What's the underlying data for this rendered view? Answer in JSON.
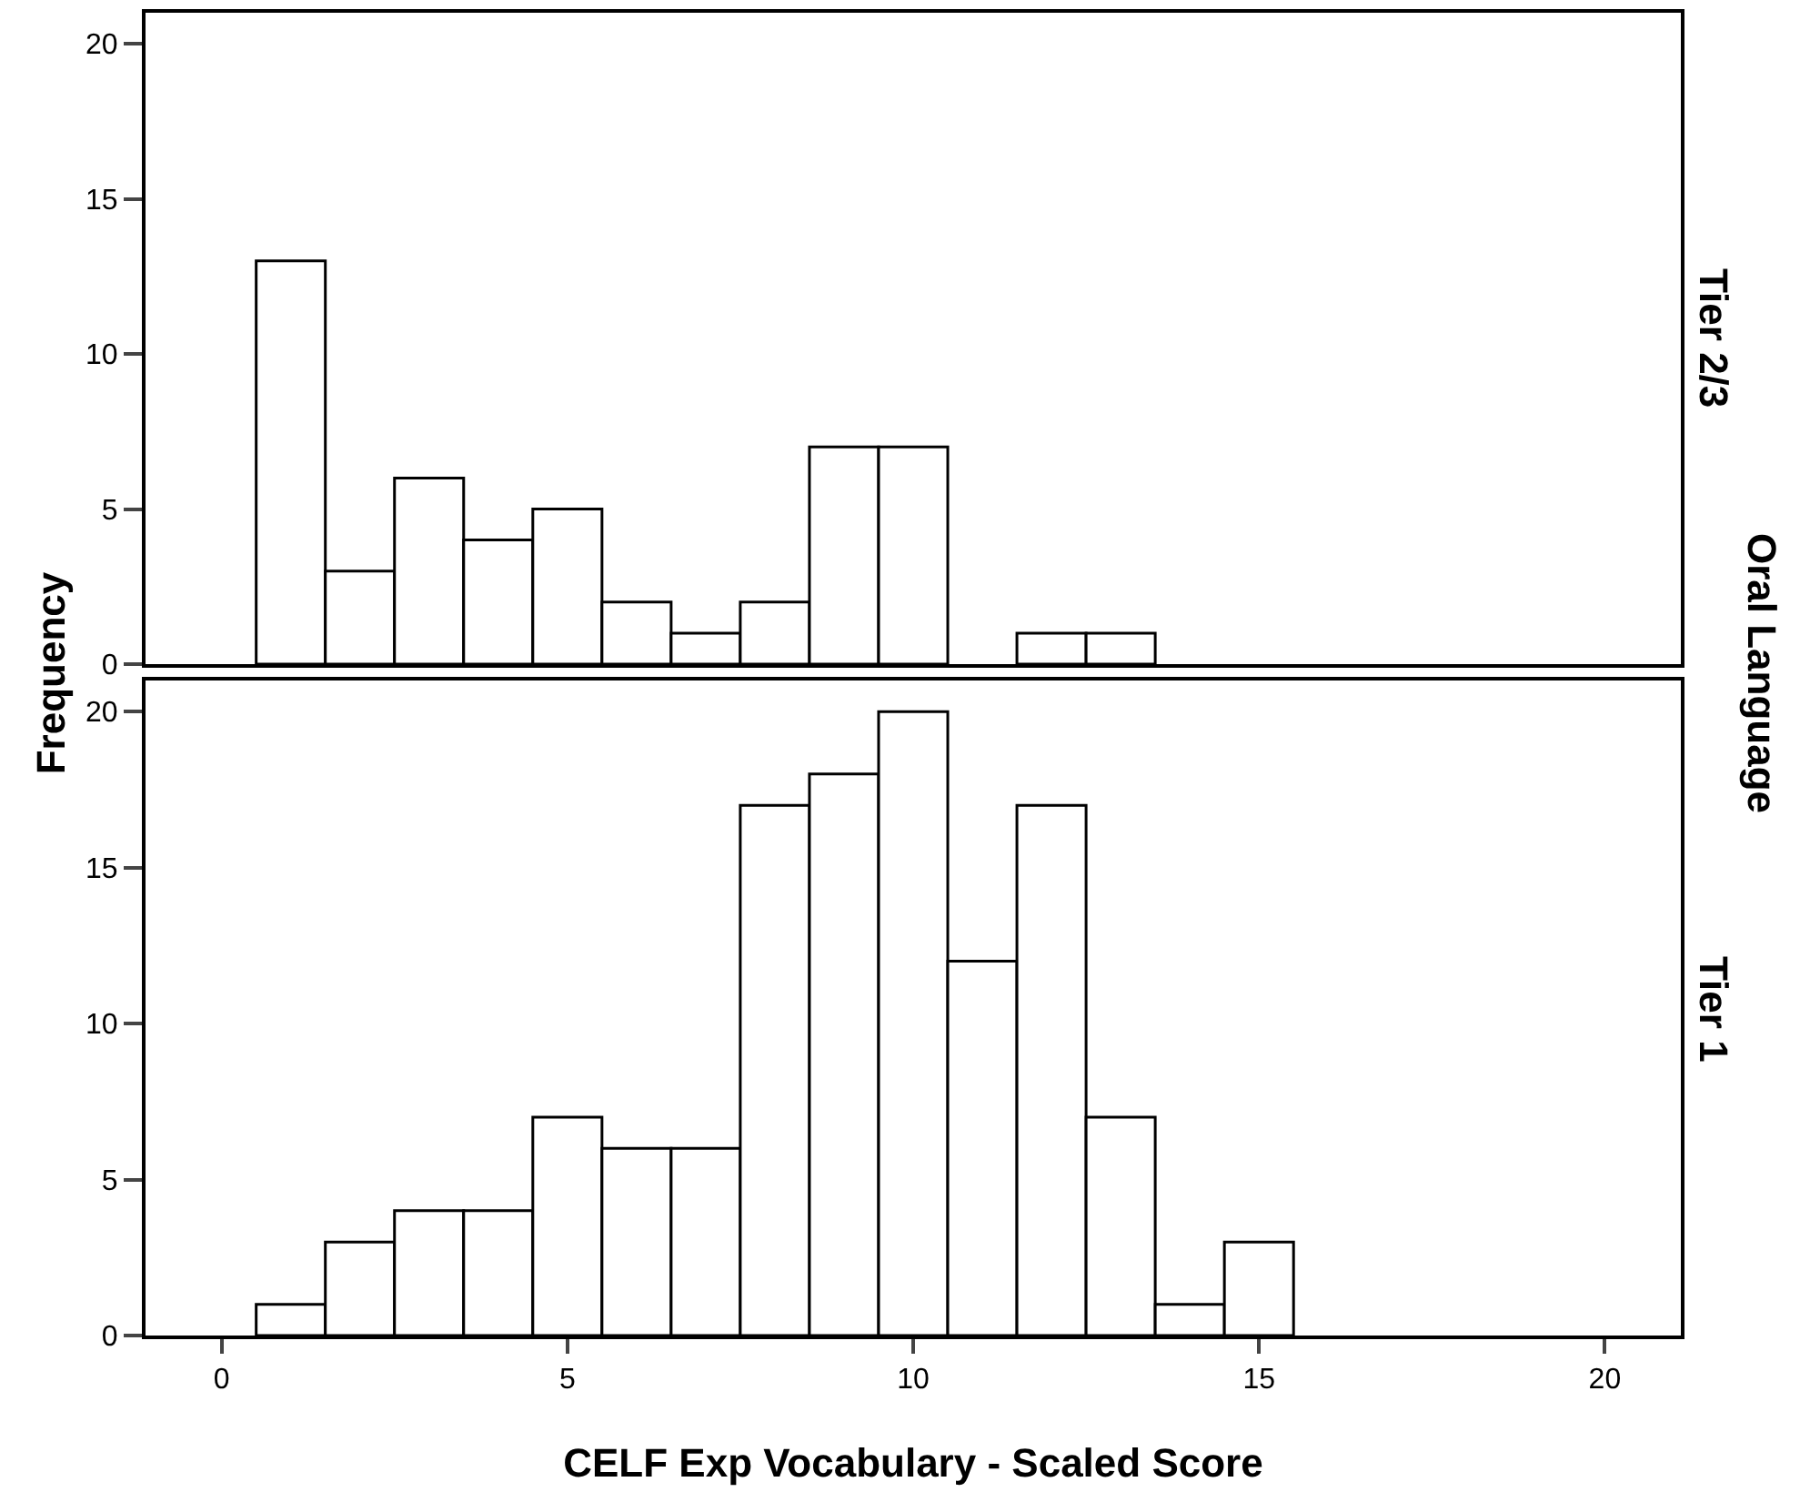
{
  "chart_data": [
    {
      "type": "histogram",
      "title": "Tier 2/3",
      "ylabel": "Frequency",
      "annotations": [
        "Oral Language"
      ],
      "color": "#ffffff",
      "bins": [
        0.5,
        1.5,
        2.5,
        3.5,
        4.5,
        5.5,
        6.5,
        7.5,
        8.5,
        9.5,
        10.5,
        11.5,
        12.5,
        13.5
      ],
      "values": [
        13,
        3,
        6,
        4,
        5,
        2,
        1,
        2,
        7,
        7,
        0,
        1,
        1
      ],
      "xlim": [
        -1.1,
        21.1
      ],
      "xticks": [
        0,
        5,
        10,
        15,
        20
      ],
      "ylim": [
        0,
        21
      ],
      "yticks": [
        0,
        5,
        10,
        15,
        20
      ],
      "tick_labels": "y",
      "grid": false
    },
    {
      "type": "histogram",
      "title": "Tier 1",
      "xlabel": "CELF Exp Vocabulary - Scaled Score",
      "color": "#ffffff",
      "bins": [
        0.5,
        1.5,
        2.5,
        3.5,
        4.5,
        5.5,
        6.5,
        7.5,
        8.5,
        9.5,
        10.5,
        11.5,
        12.5,
        13.5,
        14.5,
        15.5
      ],
      "values": [
        1,
        3,
        4,
        4,
        7,
        6,
        6,
        17,
        18,
        20,
        12,
        17,
        7,
        1,
        3
      ],
      "xlim": [
        -1.1,
        21.1
      ],
      "xticks": [
        0,
        5,
        10,
        15,
        20
      ],
      "ylim": [
        0,
        21
      ],
      "yticks": [
        0,
        5,
        10,
        15,
        20
      ],
      "grid": false
    }
  ]
}
